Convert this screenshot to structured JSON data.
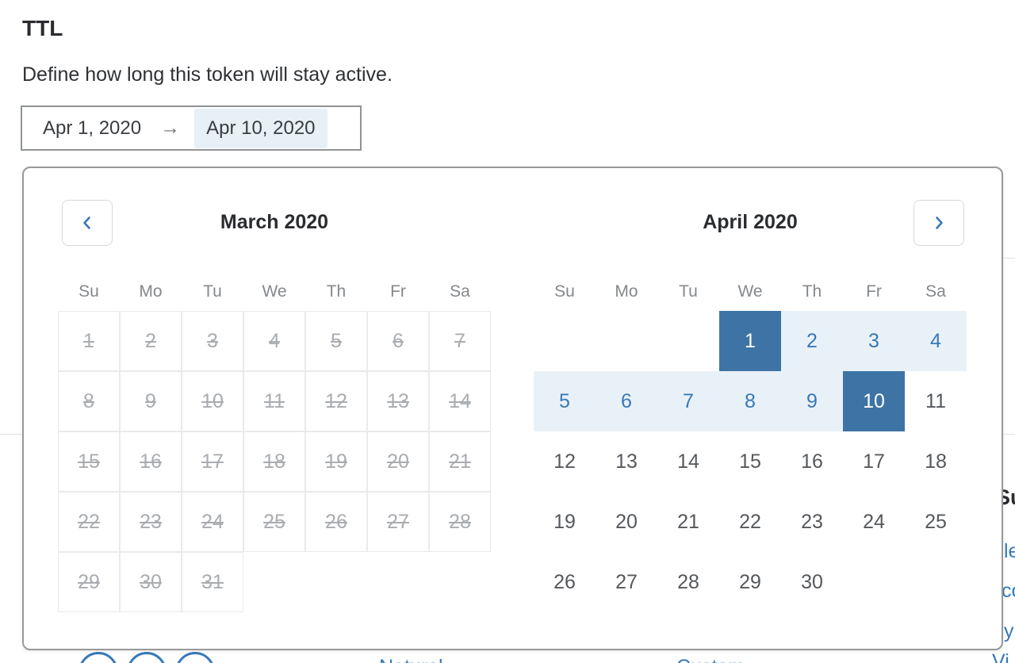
{
  "page": {
    "title": "TTL",
    "subtitle": "Define how long this token will stay active."
  },
  "date_input": {
    "start_value": "Apr 1, 2020",
    "arrow": "→",
    "end_value": "Apr 10, 2020"
  },
  "calendar": {
    "weekdays": [
      "Su",
      "Mo",
      "Tu",
      "We",
      "Th",
      "Fr",
      "Sa"
    ],
    "months": [
      {
        "title": "March 2020",
        "days_in_month": 31,
        "first_day_column": 0,
        "disabled": true,
        "bordered": true
      },
      {
        "title": "April 2020",
        "days_in_month": 30,
        "first_day_column": 3,
        "disabled": false,
        "bordered": false,
        "range_start_day": 1,
        "range_end_day": 10
      }
    ],
    "selected_range": {
      "start": "Apr 1, 2020",
      "end": "Apr 10, 2020"
    }
  },
  "colors": {
    "selected-blue": "#3d74a5",
    "range-bg": "#e9f1f8",
    "accent-blue": "#3779b8",
    "disabled-gray": "#a9acb0",
    "cell-border": "#e9eaeb",
    "weekday-gray": "#84888c",
    "day-gray": "#55585c",
    "title-dark": "#2a2c30",
    "popup-border": "#97999b",
    "input-border": "#909396",
    "arrow-gray": "#6e7276",
    "end-highlight": "#e7eff7",
    "divider-gray": "#dfe0e2"
  },
  "background_page": {
    "right_heading_fragment": "Su",
    "right_link_fragments": [
      "le",
      "co",
      "y"
    ],
    "bottom_right_fragment": "Vi",
    "bottom_link_fragments": [
      "Natural",
      "Custom"
    ],
    "step_circle_count": 3
  }
}
